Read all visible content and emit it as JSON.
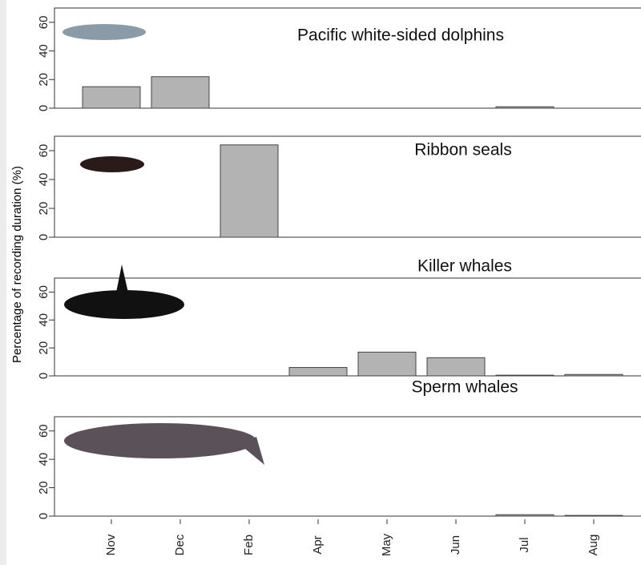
{
  "ylabel": "Percentage of recording duration (%)",
  "chart_data": [
    {
      "type": "bar",
      "title": "Pacific white-sided dolphins",
      "values": [
        15,
        22,
        0,
        0,
        0,
        0,
        1,
        0
      ],
      "color": "#b3b3b3",
      "ylim": [
        0,
        70
      ],
      "yticks": [
        0,
        20,
        40,
        60
      ]
    },
    {
      "type": "bar",
      "title": "Ribbon seals",
      "values": [
        0,
        0,
        64,
        0,
        0,
        0,
        0,
        0
      ],
      "color": "#b3b3b3",
      "ylim": [
        0,
        70
      ],
      "yticks": [
        0,
        20,
        40,
        60
      ]
    },
    {
      "type": "bar",
      "title": "Killer whales",
      "values": [
        0,
        0,
        0,
        6,
        17,
        13,
        0.5,
        1
      ],
      "color": "#b3b3b3",
      "ylim": [
        0,
        70
      ],
      "yticks": [
        0,
        20,
        40,
        60
      ]
    },
    {
      "type": "bar",
      "title": "Sperm whales",
      "values": [
        0,
        0,
        0,
        0,
        0,
        0,
        1,
        0.5
      ],
      "color": "#b3b3b3",
      "ylim": [
        0,
        70
      ],
      "yticks": [
        0,
        20,
        40,
        60
      ],
      "categories": [
        "Nov",
        "Dec",
        "Feb",
        "Apr",
        "May",
        "Jun",
        "Jul",
        "Aug"
      ]
    }
  ]
}
